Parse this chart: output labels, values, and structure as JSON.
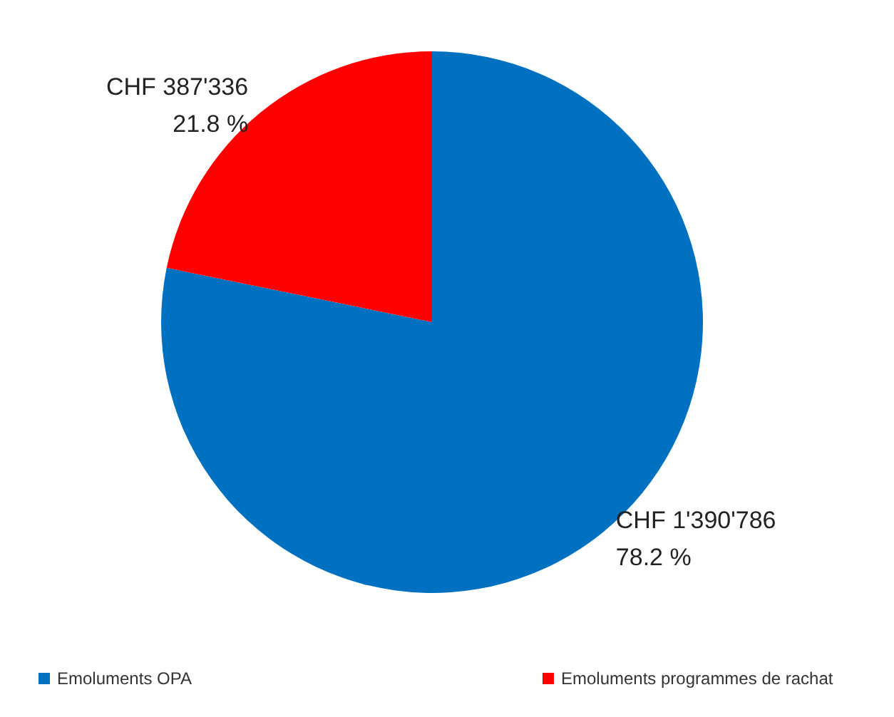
{
  "chart_data": {
    "type": "pie",
    "categories": [
      "Emoluments OPA",
      "Emoluments programmes de rachat"
    ],
    "values": [
      1390786,
      387336
    ],
    "colors": [
      "#0070c0",
      "#ff0000"
    ],
    "value_labels": [
      "CHF 1'390'786\n78.2 %",
      "CHF 387'336\n21.8 %"
    ],
    "legend": "bottom"
  }
}
